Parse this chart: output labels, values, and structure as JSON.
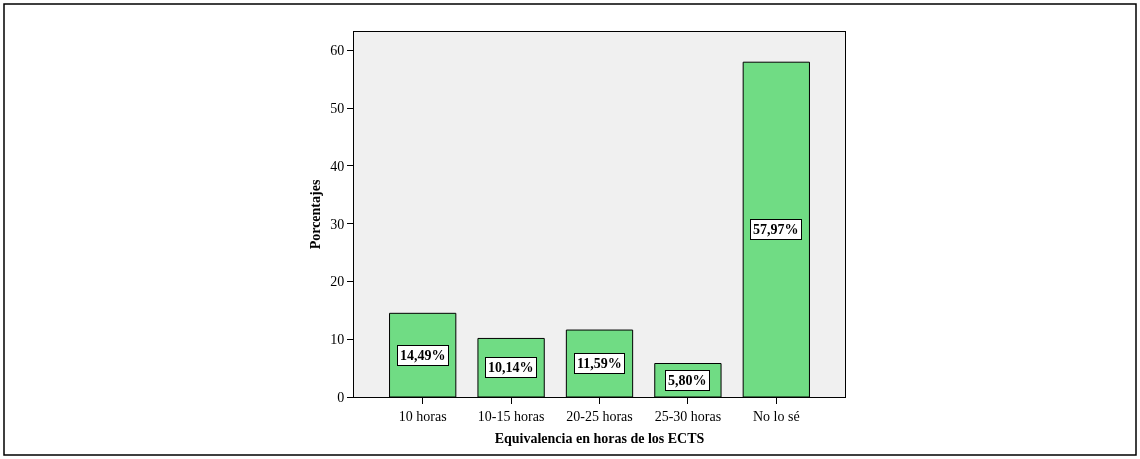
{
  "chart_data": {
    "type": "bar",
    "xlabel": "Equivalencia en horas de los ECTS",
    "ylabel": "Porcentajes",
    "categories": [
      "10 horas",
      "10-15 horas",
      "20-25 horas",
      "25-30 horas",
      "No lo sé"
    ],
    "values": [
      14.49,
      10.14,
      11.59,
      5.8,
      57.97
    ],
    "value_labels": [
      "14,49%",
      "10,14%",
      "11,59%",
      "5,80%",
      "57,97%"
    ],
    "color": "#70dc84",
    "ylim": [
      0,
      63.2
    ],
    "yticks": [
      0,
      10,
      20,
      30,
      40,
      50,
      60
    ],
    "grid": false
  }
}
